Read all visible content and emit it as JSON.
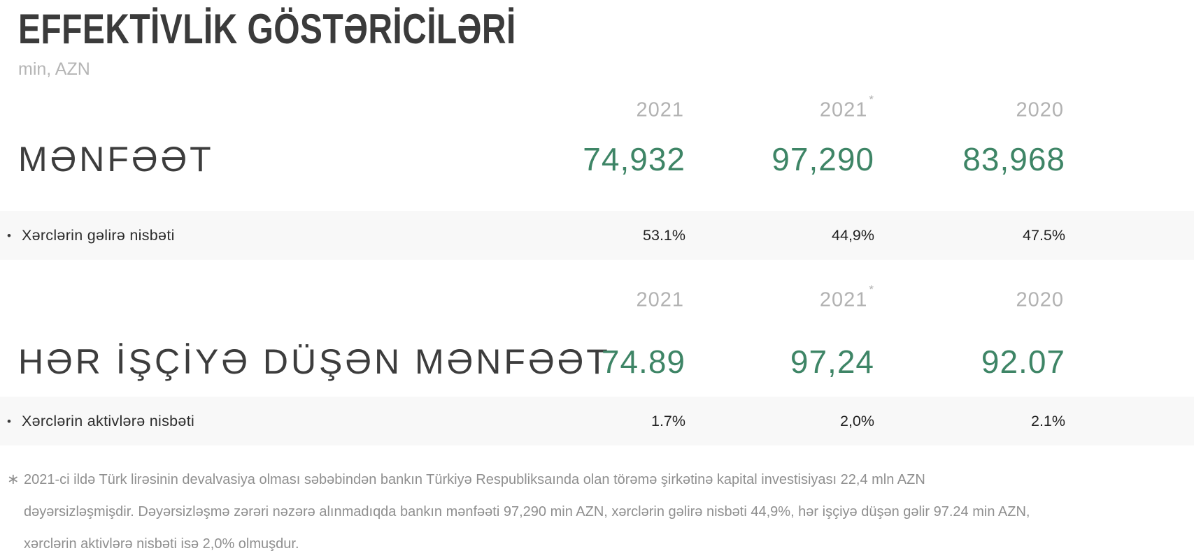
{
  "page": {
    "title": "EFFEKTİVLİK GÖSTƏRİCİLƏRİ",
    "subtitle": "min, AZN"
  },
  "colors": {
    "accent_green": "#3e8566",
    "title_dark": "#3b3b3b",
    "year_gray": "#b2b2b2",
    "stripe_bg": "#f8f8f8",
    "footnote_gray": "#8f8f8f"
  },
  "sections": [
    {
      "years": [
        {
          "label": "2021",
          "sup": ""
        },
        {
          "label": "2021",
          "sup": "*"
        },
        {
          "label": "2020",
          "sup": ""
        }
      ],
      "metric": {
        "label": "MƏNFƏƏT",
        "values": [
          "74,932",
          "97,290",
          "83,968"
        ]
      },
      "sub_metric": {
        "bullet": "•",
        "label": "Xərclərin gəlirə nisbəti",
        "values": [
          "53.1%",
          "44,9%",
          "47.5%"
        ]
      }
    },
    {
      "years": [
        {
          "label": "2021",
          "sup": ""
        },
        {
          "label": "2021",
          "sup": "*"
        },
        {
          "label": "2020",
          "sup": ""
        }
      ],
      "metric": {
        "label": "HƏR İŞÇİYƏ DÜŞƏN MƏNFƏƏT",
        "values": [
          "74.89",
          "97,24",
          "92.07"
        ]
      },
      "sub_metric": {
        "bullet": "•",
        "label": "Xərclərin aktivlərə nisbəti",
        "values": [
          "1.7%",
          "2,0%",
          "2.1%"
        ]
      }
    }
  ],
  "footnote": {
    "marker": "∗",
    "text": "2021-ci ildə Türk lirəsinin devalvasiya olması səbəbindən bankın Türkiyə Respubliksaında olan törəmə şirkətinə kapital investisiyası 22,4 mln AZN dəyərsizləşmişdir. Dəyərsizləşmə zərəri nəzərə alınmadıqda bankın mənfəəti 97,290 min AZN, xərclərin gəlirə nisbəti 44,9%, hər işçiyə düşən gəlir 97.24 min AZN, xərclərin aktivlərə nisbəti isə 2,0% olmuşdur.",
    "lines": [
      "2021-ci ildə Türk lirəsinin devalvasiya olması səbəbindən bankın Türkiyə Respubliksaında olan törəmə şirkətinə kapital investisiyası 22,4 mln AZN",
      "dəyərsizləşmişdir. Dəyərsizləşmə zərəri nəzərə alınmadıqda bankın mənfəəti 97,290 min AZN, xərclərin gəlirə nisbəti 44,9%, hər işçiyə düşən gəlir 97.24 min AZN,",
      "xərclərin aktivlərə nisbəti isə 2,0% olmuşdur."
    ]
  }
}
